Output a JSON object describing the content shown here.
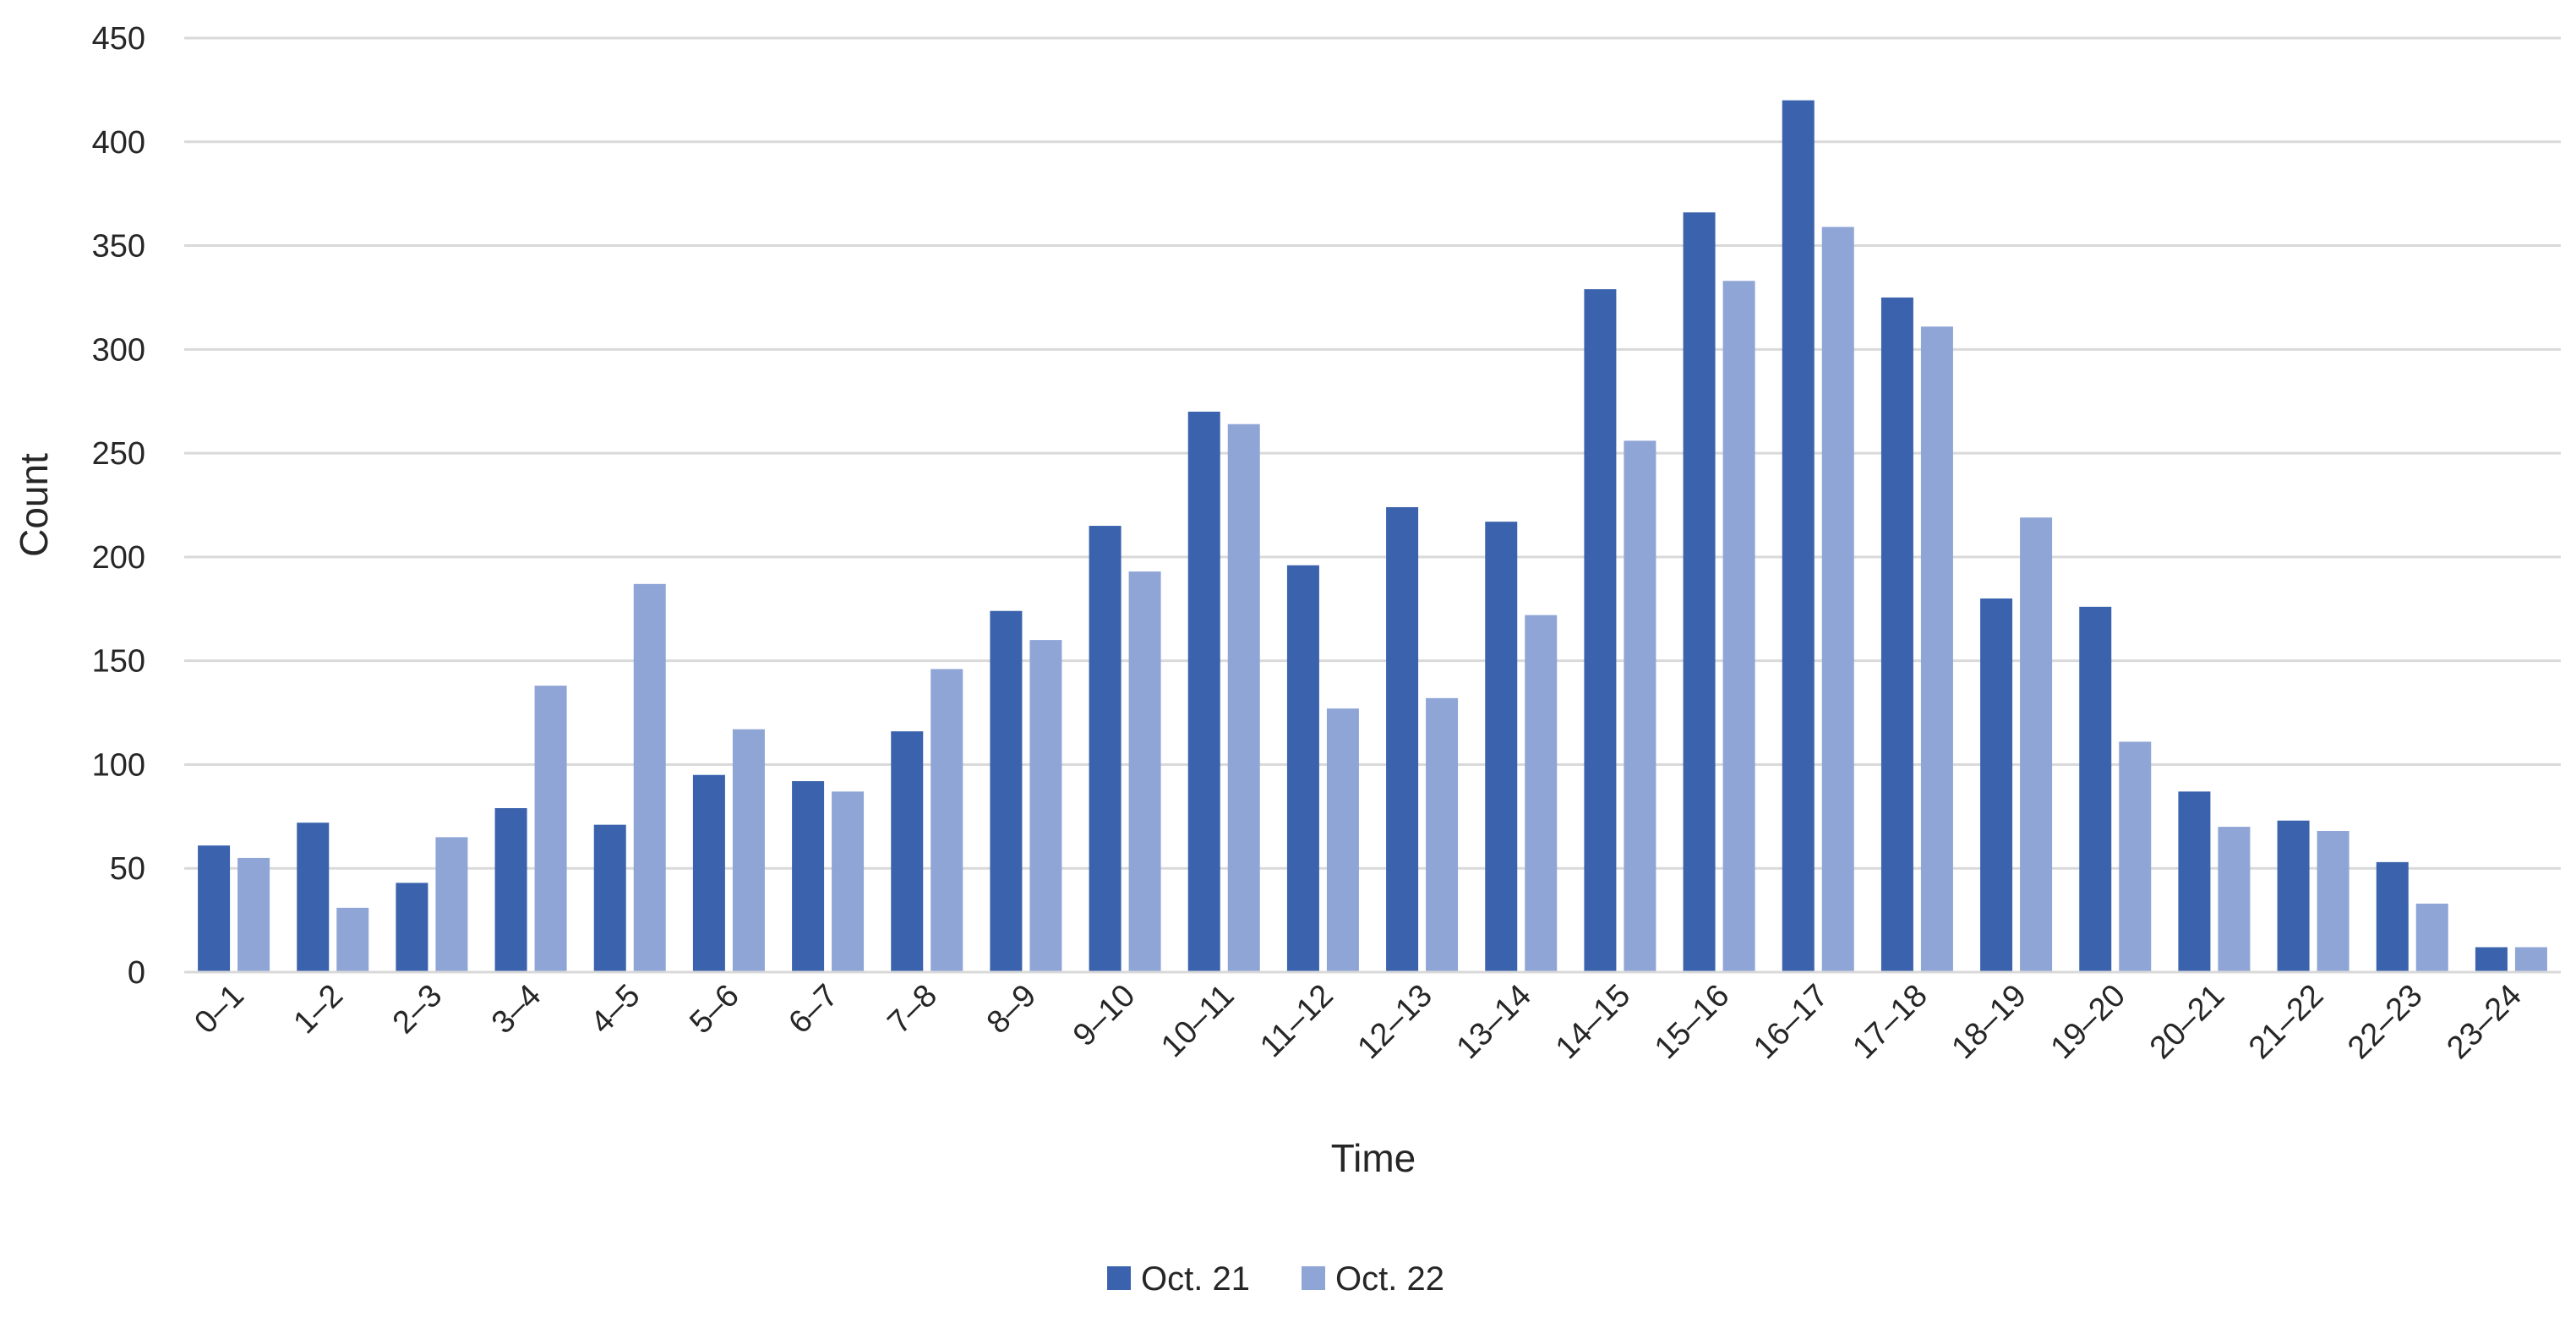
{
  "chart_data": {
    "type": "bar",
    "title": "",
    "xlabel": "Time",
    "ylabel": "Count",
    "ylim": [
      0,
      450
    ],
    "yticks": [
      0,
      50,
      100,
      150,
      200,
      250,
      300,
      350,
      400,
      450
    ],
    "grid": "horizontal",
    "legend_position": "bottom-center",
    "categories": [
      "0–1",
      "1–2",
      "2–3",
      "3–4",
      "4–5",
      "5–6",
      "6–7",
      "7–8",
      "8–9",
      "9–10",
      "10–11",
      "11–12",
      "12–13",
      "13–14",
      "14–15",
      "15–16",
      "16–17",
      "17–18",
      "18–19",
      "19–20",
      "20–21",
      "21–22",
      "22–23",
      "23–24"
    ],
    "series": [
      {
        "name": "Oct. 21",
        "color": "#3b63ad",
        "values": [
          61,
          72,
          43,
          79,
          71,
          95,
          92,
          116,
          174,
          215,
          270,
          196,
          224,
          217,
          329,
          366,
          420,
          325,
          180,
          176,
          87,
          73,
          53,
          12
        ]
      },
      {
        "name": "Oct. 22",
        "color": "#8fa5d6",
        "values": [
          55,
          31,
          65,
          138,
          187,
          117,
          87,
          146,
          160,
          193,
          264,
          127,
          132,
          172,
          256,
          333,
          359,
          311,
          219,
          111,
          70,
          68,
          33,
          12
        ]
      }
    ]
  }
}
